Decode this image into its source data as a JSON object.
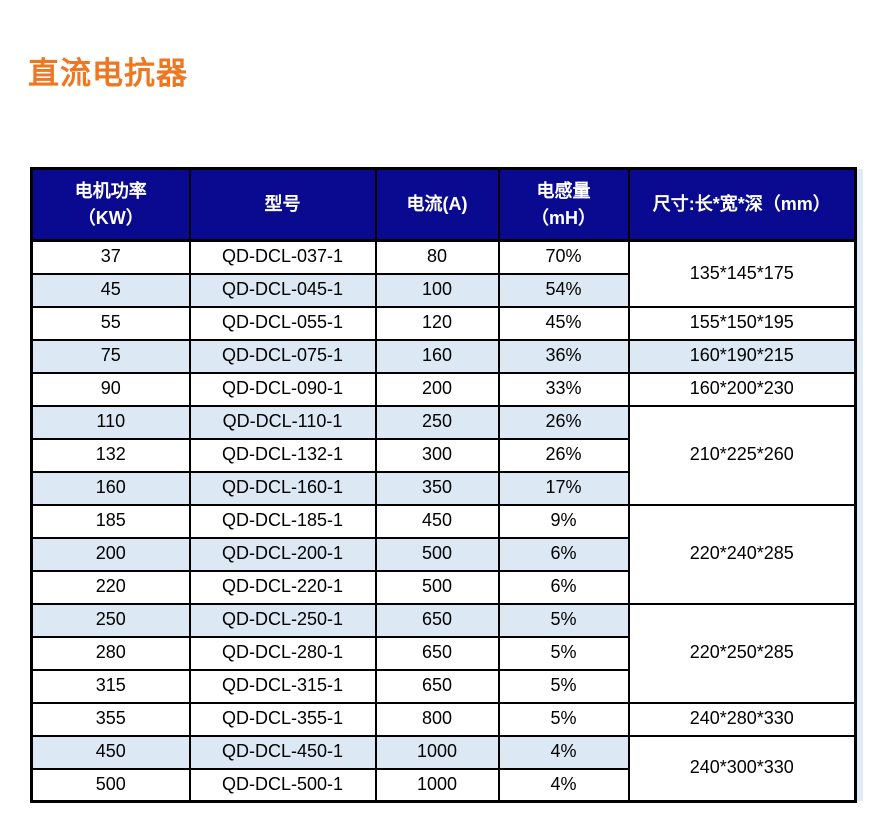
{
  "page": {
    "title": "直流电抗器"
  },
  "colors": {
    "title": "#ee7722",
    "header_bg": "#0a0a91",
    "header_text": "#ffffff",
    "row_alt_bg": "#dce8f4",
    "border": "#000000",
    "body_text": "#000000"
  },
  "table": {
    "columns": [
      "电机功率\n（KW）",
      "型号",
      "电流(A)",
      "电感量\n（mH）",
      "尺寸:长*宽*深（mm）"
    ],
    "rows": [
      {
        "power": "37",
        "model": "QD-DCL-037-1",
        "current": "80",
        "inductance": "70%",
        "shaded": false,
        "dim": {
          "text": "135*145*175",
          "rowspan": 2,
          "shaded": false
        }
      },
      {
        "power": "45",
        "model": "QD-DCL-045-1",
        "current": "100",
        "inductance": "54%",
        "shaded": true
      },
      {
        "power": "55",
        "model": "QD-DCL-055-1",
        "current": "120",
        "inductance": "45%",
        "shaded": false,
        "dim": {
          "text": "155*150*195",
          "rowspan": 1,
          "shaded": false
        }
      },
      {
        "power": "75",
        "model": "QD-DCL-075-1",
        "current": "160",
        "inductance": "36%",
        "shaded": true,
        "dim": {
          "text": "160*190*215",
          "rowspan": 1,
          "shaded": true
        }
      },
      {
        "power": "90",
        "model": "QD-DCL-090-1",
        "current": "200",
        "inductance": "33%",
        "shaded": false,
        "dim": {
          "text": "160*200*230",
          "rowspan": 1,
          "shaded": false
        }
      },
      {
        "power": "110",
        "model": "QD-DCL-110-1",
        "current": "250",
        "inductance": "26%",
        "shaded": true,
        "dim": {
          "text": "210*225*260",
          "rowspan": 3,
          "shaded": false
        }
      },
      {
        "power": "132",
        "model": "QD-DCL-132-1",
        "current": "300",
        "inductance": "26%",
        "shaded": false
      },
      {
        "power": "160",
        "model": "QD-DCL-160-1",
        "current": "350",
        "inductance": "17%",
        "shaded": true
      },
      {
        "power": "185",
        "model": "QD-DCL-185-1",
        "current": "450",
        "inductance": "9%",
        "shaded": false,
        "dim": {
          "text": "220*240*285",
          "rowspan": 3,
          "shaded": false
        }
      },
      {
        "power": "200",
        "model": "QD-DCL-200-1",
        "current": "500",
        "inductance": "6%",
        "shaded": true
      },
      {
        "power": "220",
        "model": "QD-DCL-220-1",
        "current": "500",
        "inductance": "6%",
        "shaded": false
      },
      {
        "power": "250",
        "model": "QD-DCL-250-1",
        "current": "650",
        "inductance": "5%",
        "shaded": true,
        "dim": {
          "text": "220*250*285",
          "rowspan": 3,
          "shaded": false
        }
      },
      {
        "power": "280",
        "model": "QD-DCL-280-1",
        "current": "650",
        "inductance": "5%",
        "shaded": false
      },
      {
        "power": "315",
        "model": "QD-DCL-315-1",
        "current": "650",
        "inductance": "5%",
        "shaded": false
      },
      {
        "power": "355",
        "model": "QD-DCL-355-1",
        "current": "800",
        "inductance": "5%",
        "shaded": false,
        "dim": {
          "text": "240*280*330",
          "rowspan": 1,
          "shaded": false
        }
      },
      {
        "power": "450",
        "model": "QD-DCL-450-1",
        "current": "1000",
        "inductance": "4%",
        "shaded": true,
        "dim": {
          "text": "240*300*330",
          "rowspan": 2,
          "shaded": false
        }
      },
      {
        "power": "500",
        "model": "QD-DCL-500-1",
        "current": "1000",
        "inductance": "4%",
        "shaded": false
      }
    ]
  }
}
